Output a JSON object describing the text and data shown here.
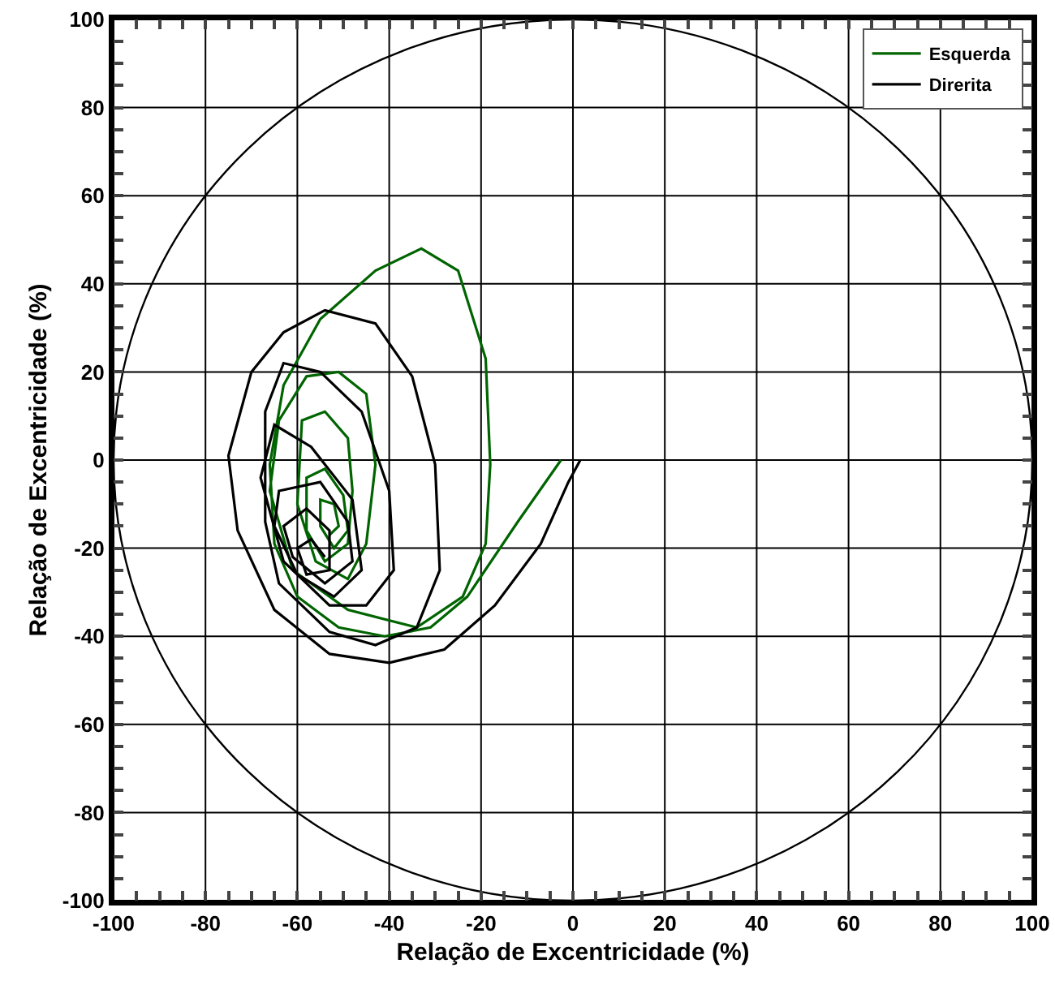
{
  "chart_data": {
    "type": "line",
    "xlabel": "Relação de Excentricidade (%)",
    "ylabel": "Relação de Excentricidade (%)",
    "xlim": [
      -100,
      100
    ],
    "ylim": [
      -100,
      100
    ],
    "xticks": [
      -100,
      {
        "value": -95,
        "label": null
      },
      {
        "value": -90,
        "label": null
      },
      {
        "value": -85,
        "label": null
      },
      -80,
      {
        "value": -75,
        "label": null
      },
      {
        "value": -70,
        "label": null
      },
      {
        "value": -65,
        "label": null
      },
      -60,
      {
        "value": -55,
        "label": null
      },
      {
        "value": -50,
        "label": null
      },
      {
        "value": -45,
        "label": null
      },
      -40,
      {
        "value": -35,
        "label": null
      },
      {
        "value": -30,
        "label": null
      },
      {
        "value": -25,
        "label": null
      },
      -20,
      {
        "value": -15,
        "label": null
      },
      {
        "value": -10,
        "label": null
      },
      {
        "value": -5,
        "label": null
      },
      0,
      {
        "value": 5,
        "label": null
      },
      {
        "value": 10,
        "label": null
      },
      {
        "value": 15,
        "label": null
      },
      20,
      {
        "value": 25,
        "label": null
      },
      {
        "value": 30,
        "label": null
      },
      {
        "value": 35,
        "label": null
      },
      40,
      {
        "value": 45,
        "label": null
      },
      {
        "value": 50,
        "label": null
      },
      {
        "value": 55,
        "label": null
      },
      60,
      {
        "value": 65,
        "label": null
      },
      {
        "value": 70,
        "label": null
      },
      {
        "value": 75,
        "label": null
      },
      80,
      {
        "value": 85,
        "label": null
      },
      {
        "value": 90,
        "label": null
      },
      {
        "value": 95,
        "label": null
      },
      100
    ],
    "yticks": [
      -100,
      {
        "value": -95,
        "label": null
      },
      {
        "value": -90,
        "label": null
      },
      {
        "value": -85,
        "label": null
      },
      -80,
      {
        "value": -75,
        "label": null
      },
      {
        "value": -70,
        "label": null
      },
      {
        "value": -65,
        "label": null
      },
      -60,
      {
        "value": -55,
        "label": null
      },
      {
        "value": -50,
        "label": null
      },
      {
        "value": -45,
        "label": null
      },
      -40,
      {
        "value": -35,
        "label": null
      },
      {
        "value": -30,
        "label": null
      },
      {
        "value": -25,
        "label": null
      },
      -20,
      {
        "value": -15,
        "label": null
      },
      {
        "value": -10,
        "label": null
      },
      {
        "value": -5,
        "label": null
      },
      0,
      {
        "value": 5,
        "label": null
      },
      {
        "value": 10,
        "label": null
      },
      {
        "value": 15,
        "label": null
      },
      20,
      {
        "value": 25,
        "label": null
      },
      {
        "value": 30,
        "label": null
      },
      {
        "value": 35,
        "label": null
      },
      40,
      {
        "value": 45,
        "label": null
      },
      {
        "value": 50,
        "label": null
      },
      {
        "value": 55,
        "label": null
      },
      60,
      {
        "value": 65,
        "label": null
      },
      {
        "value": 70,
        "label": null
      },
      {
        "value": 75,
        "label": null
      },
      80,
      {
        "value": 85,
        "label": null
      },
      {
        "value": 90,
        "label": null
      },
      {
        "value": 95,
        "label": null
      },
      100
    ],
    "grid": true,
    "legend": "top right",
    "line_style": "solid",
    "series": [
      {
        "name": "Esquerda",
        "color": "#006400",
        "x": [
          -2.6,
          -12,
          -23,
          -31,
          -41,
          -51,
          -60,
          -65,
          -66,
          -63,
          -55,
          -43,
          -33,
          -25,
          -19,
          -18,
          -19,
          -24,
          -34,
          -49,
          -61,
          -66,
          -64,
          -58,
          -51,
          -45,
          -43,
          -45,
          -49,
          -56,
          -60,
          -59,
          -54,
          -49,
          -48,
          -49,
          -54,
          -58,
          -58,
          -54,
          -50,
          -49,
          -52,
          -55,
          -55,
          -52,
          -51,
          -53
        ],
        "values": [
          0,
          -14,
          -31,
          -38,
          -40,
          -38,
          -31,
          -19,
          -1,
          17,
          32,
          43,
          48,
          43,
          23,
          -1,
          -19,
          -31,
          -38,
          -34,
          -25,
          -7,
          9,
          19,
          20,
          15,
          -1,
          -19,
          -27,
          -23,
          -10,
          9,
          11,
          5,
          -7,
          -19,
          -23,
          -16,
          -4,
          -2,
          -8,
          -16,
          -20,
          -15,
          -9,
          -10,
          -15,
          -17
        ]
      },
      {
        "name": "Direrita",
        "color": "#000000",
        "x": [
          1.6,
          -1,
          -7,
          -17,
          -28,
          -40,
          -53,
          -65,
          -73,
          -75,
          -70,
          -63,
          -54,
          -43,
          -35,
          -30,
          -29,
          -34,
          -43,
          -53,
          -64,
          -67,
          -67,
          -63,
          -55,
          -46,
          -40,
          -39,
          -45,
          -53,
          -63,
          -68,
          -65,
          -57,
          -48,
          -46,
          -52,
          -60,
          -65,
          -64,
          -55,
          -49,
          -48,
          -54,
          -61,
          -63,
          -58,
          -53,
          -53,
          -58,
          -60,
          -57,
          -54
        ],
        "values": [
          0,
          -5,
          -19,
          -33,
          -43,
          -46,
          -44,
          -34,
          -16,
          1,
          20,
          29,
          34,
          31,
          19,
          -1,
          -25,
          -38,
          -42,
          -39,
          -28,
          -14,
          11,
          22,
          20,
          11,
          -7,
          -25,
          -33,
          -33,
          -23,
          -4,
          8,
          3,
          -9,
          -25,
          -31,
          -26,
          -15,
          -7,
          -5,
          -14,
          -23,
          -28,
          -22,
          -15,
          -11,
          -16,
          -25,
          -26,
          -20,
          -18,
          -22
        ]
      }
    ]
  }
}
